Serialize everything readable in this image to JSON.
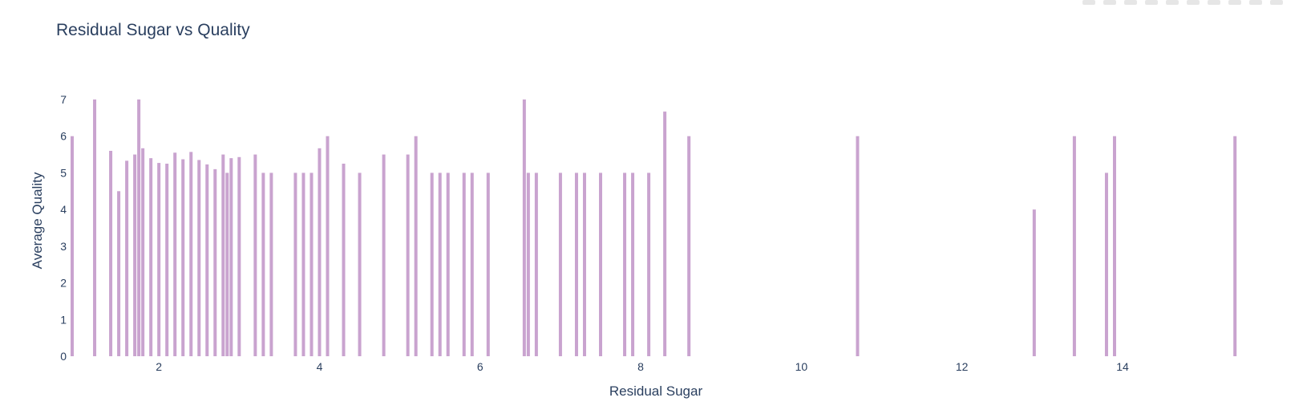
{
  "chart_data": {
    "type": "bar",
    "title": "Residual Sugar vs Quality",
    "xlabel": "Residual Sugar",
    "ylabel": "Average Quality",
    "xlim": [
      0.9,
      15.9
    ],
    "ylim": [
      0,
      7.3
    ],
    "xticks": [
      2,
      4,
      6,
      8,
      10,
      12,
      14
    ],
    "yticks": [
      0,
      1,
      2,
      3,
      4,
      5,
      6,
      7
    ],
    "grid": false,
    "bar_color": "#c9a3cf",
    "x": [
      0.9,
      1.2,
      1.4,
      1.5,
      1.6,
      1.7,
      1.75,
      1.8,
      1.9,
      2.0,
      2.1,
      2.2,
      2.3,
      2.4,
      2.5,
      2.6,
      2.7,
      2.8,
      2.85,
      2.9,
      3.0,
      3.2,
      3.3,
      3.4,
      3.7,
      3.8,
      3.9,
      4.0,
      4.1,
      4.3,
      4.5,
      4.8,
      5.1,
      5.2,
      5.4,
      5.5,
      5.6,
      5.8,
      5.9,
      6.1,
      6.55,
      6.6,
      6.7,
      7.0,
      7.2,
      7.3,
      7.5,
      7.8,
      7.9,
      8.1,
      8.3,
      8.6,
      10.7,
      12.9,
      13.4,
      13.8,
      13.9,
      15.4
    ],
    "values": [
      6.0,
      7.0,
      5.6,
      4.5,
      5.33,
      5.5,
      7.0,
      5.67,
      5.4,
      5.27,
      5.25,
      5.55,
      5.37,
      5.57,
      5.35,
      5.23,
      5.1,
      5.5,
      5.0,
      5.4,
      5.43,
      5.5,
      5.0,
      5.0,
      5.0,
      5.0,
      5.0,
      5.67,
      6.0,
      5.25,
      5.0,
      5.5,
      5.5,
      6.0,
      5.0,
      5.0,
      5.0,
      5.0,
      5.0,
      5.0,
      7.0,
      5.0,
      5.0,
      5.0,
      5.0,
      5.0,
      5.0,
      5.0,
      5.0,
      5.0,
      6.67,
      6.0,
      6.0,
      4.0,
      6.0,
      5.0,
      6.0,
      6.0
    ]
  }
}
